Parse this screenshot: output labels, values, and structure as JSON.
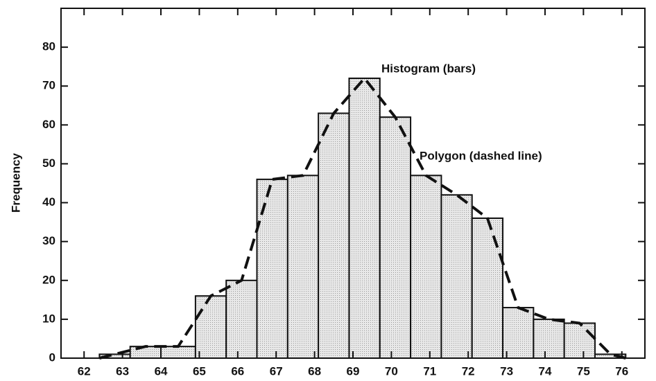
{
  "chart_data": {
    "type": "histogram",
    "ylabel": "Frequency",
    "bins": [
      62.4,
      63.2,
      64.0,
      64.9,
      65.7,
      66.5,
      67.3,
      68.1,
      68.9,
      69.7,
      70.5,
      71.3,
      72.1,
      72.9,
      73.7,
      74.5,
      75.3,
      76.1
    ],
    "counts": [
      1,
      3,
      3,
      16,
      20,
      46,
      47,
      63,
      72,
      62,
      47,
      42,
      36,
      13,
      10,
      9,
      1
    ],
    "polygon": {
      "x": [
        62.4,
        62.8,
        63.6,
        64.45,
        65.3,
        66.1,
        66.9,
        67.7,
        68.5,
        69.3,
        70.1,
        70.9,
        71.7,
        72.5,
        73.3,
        74.1,
        74.9,
        75.7,
        76.1
      ],
      "values": [
        0,
        1,
        3,
        3,
        16,
        20,
        46,
        47,
        63,
        72,
        62,
        47,
        42,
        36,
        13,
        10,
        9,
        1,
        0
      ]
    },
    "color": "#dcdcdc",
    "xlim": [
      61.4,
      76.6
    ],
    "ylim": [
      0,
      90
    ],
    "xticks": [
      62,
      63,
      64,
      65,
      66,
      67,
      68,
      69,
      70,
      71,
      72,
      73,
      74,
      75,
      76
    ],
    "yticks": [
      0,
      10,
      20,
      30,
      40,
      50,
      60,
      70,
      80
    ],
    "annotations": [
      "Histogram (bars)",
      "Polygon (dashed line)"
    ]
  }
}
